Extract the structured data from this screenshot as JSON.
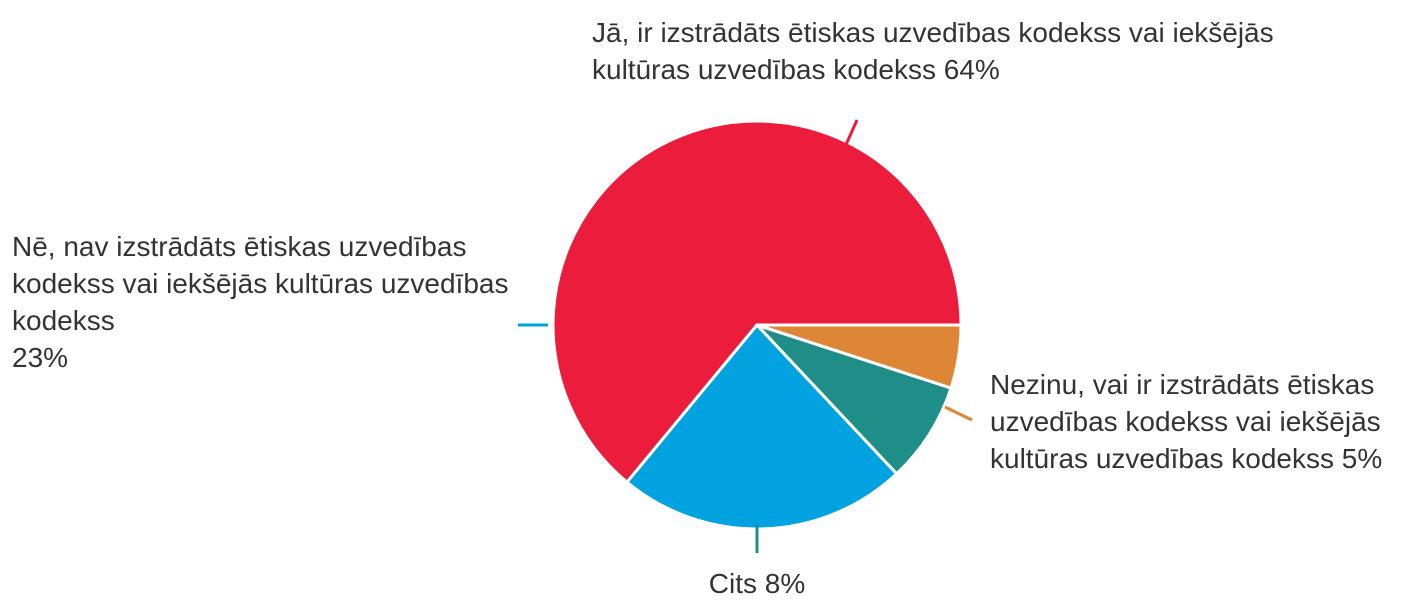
{
  "chart_data": {
    "type": "pie",
    "categories": [
      "Jā, ir izstrādāts ētiskas uzvedības kodekss vai iekšējās kultūras uzvedības kodekss",
      "Nē, nav izstrādāts ētiskas uzvedības kodekss vai iekšējās kultūras uzvedības kodekss",
      "Cits",
      "Nezinu, vai ir izstrādāts ētiskas uzvedības kodekss vai iekšējās kultūras uzvedības kodekss"
    ],
    "values": [
      64,
      23,
      8,
      5
    ],
    "value_labels": [
      "64%",
      "23%",
      "8%",
      "5%"
    ],
    "colors": [
      "#ec1c3c",
      "#00a3e0",
      "#1f8e89",
      "#dd8736"
    ]
  }
}
